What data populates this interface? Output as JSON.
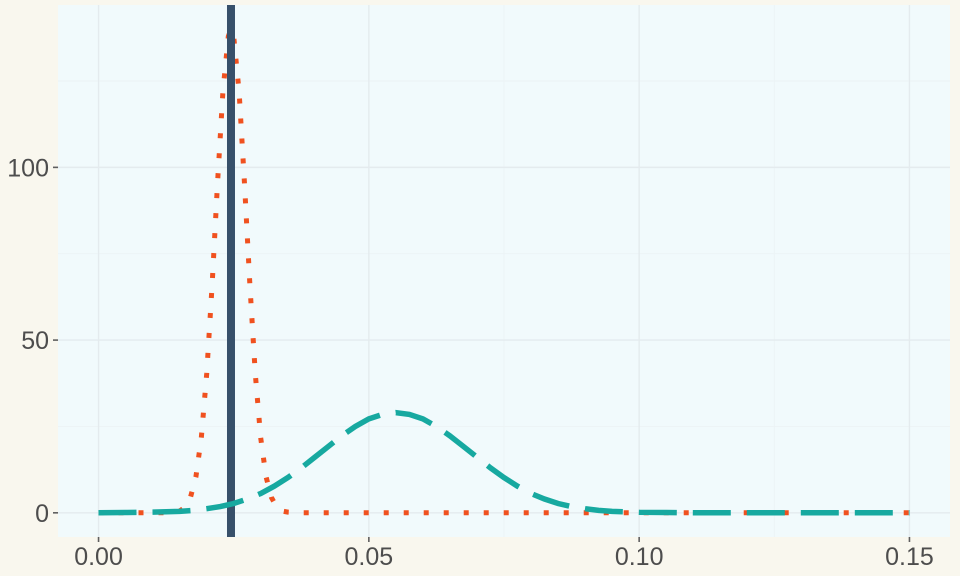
{
  "chart_data": {
    "type": "line",
    "title": "",
    "xlabel": "",
    "ylabel": "",
    "grid": "on",
    "legend": "none",
    "x_axis": {
      "range": [
        -0.0075,
        0.1575
      ],
      "major_ticks": [
        0,
        0.05,
        0.1,
        0.15
      ],
      "tick_labels": [
        "0.00",
        "0.05",
        "0.10",
        "0.15"
      ],
      "minor_ticks": [
        0.025,
        0.075,
        0.125
      ]
    },
    "y_axis": {
      "range": [
        -7,
        147
      ],
      "major_ticks": [
        0,
        50,
        100
      ],
      "tick_labels": [
        "0",
        "50",
        "100"
      ],
      "minor_ticks": [
        25,
        75,
        125
      ]
    },
    "vline": {
      "x": 0.0245,
      "color": "#37506A",
      "stroke_width": 8,
      "linetype": "solid"
    },
    "series": [
      {
        "name": "narrow-peak-dotted-curve",
        "color": "#F0511F",
        "linetype": "dotted",
        "stroke_width": 5,
        "peak": {
          "x": 0.0245,
          "y": 140
        },
        "points": [
          [
            0.0,
            0
          ],
          [
            0.005,
            0
          ],
          [
            0.01,
            0
          ],
          [
            0.013,
            0
          ],
          [
            0.015,
            0.5
          ],
          [
            0.016,
            1.6
          ],
          [
            0.017,
            4.4
          ],
          [
            0.018,
            10.4
          ],
          [
            0.019,
            21.7
          ],
          [
            0.02,
            40.2
          ],
          [
            0.021,
            65.9
          ],
          [
            0.022,
            95.3
          ],
          [
            0.023,
            121.9
          ],
          [
            0.024,
            137.9
          ],
          [
            0.0245,
            140
          ],
          [
            0.025,
            137.9
          ],
          [
            0.026,
            121.9
          ],
          [
            0.027,
            95.3
          ],
          [
            0.028,
            65.9
          ],
          [
            0.029,
            40.2
          ],
          [
            0.03,
            21.7
          ],
          [
            0.031,
            10.4
          ],
          [
            0.032,
            4.4
          ],
          [
            0.033,
            1.6
          ],
          [
            0.034,
            0.5
          ],
          [
            0.035,
            0.2
          ],
          [
            0.0375,
            0
          ],
          [
            0.04,
            0
          ],
          [
            0.045,
            0
          ],
          [
            0.05,
            0
          ],
          [
            0.06,
            0
          ],
          [
            0.07,
            0
          ],
          [
            0.08,
            0
          ],
          [
            0.09,
            0
          ],
          [
            0.1,
            0
          ],
          [
            0.11,
            0
          ],
          [
            0.12,
            0
          ],
          [
            0.13,
            0
          ],
          [
            0.14,
            0
          ],
          [
            0.15,
            0
          ]
        ]
      },
      {
        "name": "wide-peak-longdash-curve",
        "color": "#17A9A0",
        "linetype": "longdash",
        "stroke_width": 5.5,
        "peak": {
          "x": 0.055,
          "y": 29
        },
        "points": [
          [
            0.0,
            0
          ],
          [
            0.005,
            0.1
          ],
          [
            0.01,
            0.2
          ],
          [
            0.0125,
            0.3
          ],
          [
            0.015,
            0.4
          ],
          [
            0.0175,
            0.7
          ],
          [
            0.02,
            1.2
          ],
          [
            0.0225,
            1.8
          ],
          [
            0.025,
            2.7
          ],
          [
            0.0275,
            4.0
          ],
          [
            0.03,
            5.6
          ],
          [
            0.0325,
            7.7
          ],
          [
            0.035,
            10.2
          ],
          [
            0.0375,
            13.0
          ],
          [
            0.04,
            16.1
          ],
          [
            0.0425,
            19.2
          ],
          [
            0.045,
            22.3
          ],
          [
            0.0475,
            25.0
          ],
          [
            0.05,
            27.2
          ],
          [
            0.0525,
            28.5
          ],
          [
            0.055,
            29
          ],
          [
            0.0575,
            28.5
          ],
          [
            0.06,
            27.2
          ],
          [
            0.0625,
            25.0
          ],
          [
            0.065,
            22.3
          ],
          [
            0.0675,
            19.2
          ],
          [
            0.07,
            16.1
          ],
          [
            0.0725,
            13.0
          ],
          [
            0.075,
            10.2
          ],
          [
            0.0775,
            7.7
          ],
          [
            0.08,
            5.6
          ],
          [
            0.0825,
            4.0
          ],
          [
            0.085,
            2.7
          ],
          [
            0.0875,
            1.8
          ],
          [
            0.09,
            1.2
          ],
          [
            0.0925,
            0.7
          ],
          [
            0.095,
            0.4
          ],
          [
            0.0975,
            0.3
          ],
          [
            0.1,
            0.15
          ],
          [
            0.105,
            0.1
          ],
          [
            0.11,
            0
          ],
          [
            0.12,
            0
          ],
          [
            0.13,
            0
          ],
          [
            0.14,
            0
          ],
          [
            0.15,
            0
          ]
        ]
      }
    ],
    "colors": {
      "outer_background": "#F9F7EE",
      "panel_background": "#F1FAFC",
      "grid_major": "#E4EBEE",
      "grid_minor": "#ECF3F5",
      "tick_mark": "#5F5F5F",
      "tick_label": "#4D4D4D"
    }
  }
}
